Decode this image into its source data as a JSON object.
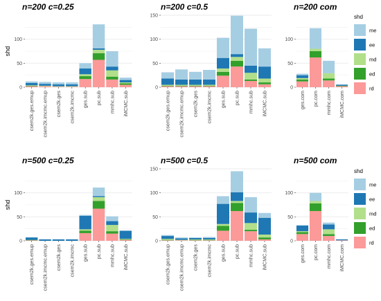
{
  "colors": {
    "me": "#a6cee3",
    "ee": "#1f78b4",
    "md": "#b2df8a",
    "ed": "#33a02c",
    "rd": "#fb9a99"
  },
  "legend": {
    "title": "shd",
    "items": [
      "me",
      "ee",
      "md",
      "ed",
      "rd"
    ]
  },
  "chart_data": [
    {
      "type": "bar",
      "title": "n=200 c=0.25",
      "ylabel": "shd",
      "ylim": [
        0,
        150
      ],
      "yticks": [
        0,
        50,
        100
      ],
      "categories": [
        "csem2k.ges.emup",
        "csem2k.imcmc.emup",
        "csem2k.ges",
        "csem2k.imcmc",
        "ges.sub",
        "pc.sub",
        "mmhc.sub",
        "iMCMC.sub"
      ],
      "series": [
        {
          "name": "rd",
          "values": [
            2,
            2,
            1,
            1,
            17,
            57,
            16,
            5
          ]
        },
        {
          "name": "ed",
          "values": [
            1,
            0,
            0,
            0,
            6,
            14,
            6,
            3
          ]
        },
        {
          "name": "md",
          "values": [
            1,
            1,
            1,
            1,
            4,
            7,
            13,
            2
          ]
        },
        {
          "name": "ee",
          "values": [
            5,
            4,
            4,
            4,
            12,
            3,
            8,
            5
          ]
        },
        {
          "name": "me",
          "values": [
            3,
            4,
            4,
            4,
            11,
            50,
            32,
            5
          ]
        }
      ]
    },
    {
      "type": "bar",
      "title": "n=200 c=0.5",
      "ylabel": "",
      "ylim": [
        0,
        150
      ],
      "yticks": [
        0,
        50,
        100,
        150
      ],
      "categories": [
        "csem2k.ges.emup",
        "csem2k.imcmc.emup",
        "csem2k.ges",
        "csem2k.imcmc",
        "ges.sub",
        "pc.sub",
        "mmhc.sub",
        "iMCMC.sub"
      ],
      "series": [
        {
          "name": "rd",
          "values": [
            2,
            2,
            2,
            2,
            24,
            43,
            13,
            6
          ]
        },
        {
          "name": "ed",
          "values": [
            1,
            1,
            1,
            1,
            8,
            12,
            3,
            4
          ]
        },
        {
          "name": "md",
          "values": [
            2,
            2,
            2,
            2,
            7,
            8,
            14,
            8
          ]
        },
        {
          "name": "ee",
          "values": [
            13,
            11,
            11,
            11,
            22,
            6,
            15,
            25
          ]
        },
        {
          "name": "me",
          "values": [
            13,
            21,
            16,
            20,
            42,
            80,
            77,
            38
          ]
        }
      ]
    },
    {
      "type": "bar",
      "title": "n=200 com",
      "ylabel": "",
      "ylim": [
        0,
        150
      ],
      "yticks": [
        0,
        50,
        100
      ],
      "categories": [
        "ges.com",
        "pc.com",
        "mmhc.com",
        "iMCMC.com"
      ],
      "series": [
        {
          "name": "rd",
          "values": [
            12,
            62,
            14,
            2
          ]
        },
        {
          "name": "ed",
          "values": [
            4,
            13,
            4,
            1
          ]
        },
        {
          "name": "md",
          "values": [
            3,
            5,
            11,
            0
          ]
        },
        {
          "name": "ee",
          "values": [
            6,
            0,
            0,
            2
          ]
        },
        {
          "name": "me",
          "values": [
            3,
            43,
            26,
            1
          ]
        }
      ]
    },
    {
      "type": "bar",
      "title": "n=500 c=0.25",
      "ylabel": "shd",
      "ylim": [
        0,
        150
      ],
      "yticks": [
        0,
        50,
        100
      ],
      "categories": [
        "csem2k.ges.emup",
        "csem2k.imcmc.emup",
        "csem2k.ges",
        "csem2k.imcmc",
        "ges.sub",
        "pc.sub",
        "mmhc.sub",
        "iMCMC.sub"
      ],
      "series": [
        {
          "name": "rd",
          "values": [
            1,
            0,
            0,
            0,
            16,
            67,
            15,
            2
          ]
        },
        {
          "name": "ed",
          "values": [
            1,
            0,
            0,
            0,
            5,
            16,
            5,
            1
          ]
        },
        {
          "name": "md",
          "values": [
            0,
            0,
            0,
            0,
            3,
            8,
            13,
            1
          ]
        },
        {
          "name": "ee",
          "values": [
            5,
            3,
            3,
            3,
            28,
            2,
            8,
            17
          ]
        },
        {
          "name": "me",
          "values": [
            0,
            0,
            0,
            0,
            2,
            18,
            10,
            0
          ]
        }
      ]
    },
    {
      "type": "bar",
      "title": "n=500 c=0.5",
      "ylabel": "",
      "ylim": [
        0,
        150
      ],
      "yticks": [
        0,
        50,
        100,
        150
      ],
      "categories": [
        "csem2k.ges.emup",
        "csem2k.imcmc.emup",
        "csem2k.ges",
        "csem2k.imcmc",
        "ges.sub",
        "pc.sub",
        "mmhc.sub",
        "iMCMC.sub"
      ],
      "series": [
        {
          "name": "rd",
          "values": [
            1,
            1,
            1,
            1,
            21,
            62,
            20,
            3
          ]
        },
        {
          "name": "ed",
          "values": [
            1,
            0,
            1,
            1,
            10,
            17,
            3,
            4
          ]
        },
        {
          "name": "md",
          "values": [
            2,
            1,
            1,
            1,
            4,
            4,
            14,
            6
          ]
        },
        {
          "name": "ee",
          "values": [
            6,
            3,
            3,
            3,
            42,
            18,
            22,
            35
          ]
        },
        {
          "name": "me",
          "values": [
            2,
            2,
            1,
            2,
            16,
            44,
            32,
            10
          ]
        }
      ]
    },
    {
      "type": "bar",
      "title": "n=500 com",
      "ylabel": "",
      "ylim": [
        0,
        150
      ],
      "yticks": [
        0,
        50,
        100
      ],
      "categories": [
        "ges.com",
        "pc.com",
        "mmhc.com",
        "iMCMC.com"
      ],
      "series": [
        {
          "name": "rd",
          "values": [
            14,
            62,
            10,
            1
          ]
        },
        {
          "name": "ed",
          "values": [
            4,
            16,
            4,
            0
          ]
        },
        {
          "name": "md",
          "values": [
            2,
            5,
            10,
            0
          ]
        },
        {
          "name": "ee",
          "values": [
            12,
            0,
            10,
            2
          ]
        },
        {
          "name": "me",
          "values": [
            0,
            17,
            4,
            0
          ]
        }
      ]
    }
  ]
}
